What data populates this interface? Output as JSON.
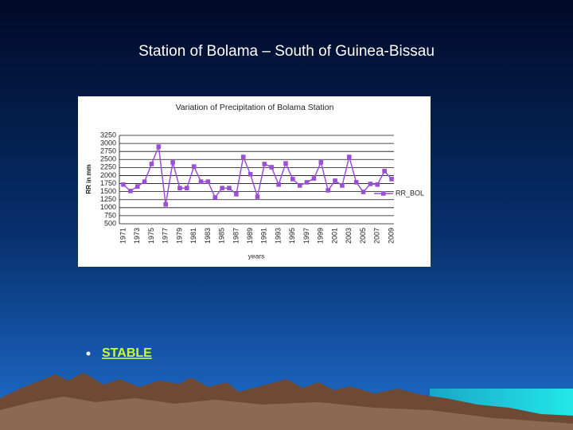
{
  "slide_title": "Station of Bolama – South of Guinea-Bissau",
  "bullets": [
    "STABLE"
  ],
  "chart_data": {
    "type": "line",
    "title": "Variation of Precipitation of Bolama Station",
    "x_label": "years",
    "y_label": "RR in mm",
    "categories": [
      "1971",
      null,
      "1973",
      null,
      "1975",
      null,
      "1977",
      null,
      "1979",
      null,
      "1981",
      null,
      "1983",
      null,
      "1985",
      null,
      "1987",
      null,
      "1989",
      null,
      "1991",
      null,
      "1993",
      null,
      "1995",
      null,
      "1997",
      null,
      "1999",
      null,
      "2001",
      null,
      "2003",
      null,
      "2005",
      null,
      "2007",
      null,
      "2009"
    ],
    "series": [
      {
        "name": "RR_BOL",
        "color": "#9b4fd6",
        "values": [
          1720,
          1520,
          1660,
          1810,
          2360,
          2900,
          1100,
          2410,
          1610,
          1610,
          2280,
          1810,
          1810,
          1320,
          1610,
          1610,
          1420,
          2580,
          2040,
          1340,
          2360,
          2260,
          1720,
          2380,
          1890,
          1690,
          1790,
          1910,
          2410,
          1540,
          1840,
          1690,
          2580,
          1790,
          1490,
          1740,
          1720,
          2140,
          1890
        ]
      }
    ],
    "ylim": [
      500,
      3250
    ],
    "yticks": [
      500,
      750,
      1000,
      1250,
      1500,
      1750,
      2000,
      2250,
      2500,
      2750,
      3000,
      3250
    ],
    "grid": true,
    "legend": "right"
  }
}
